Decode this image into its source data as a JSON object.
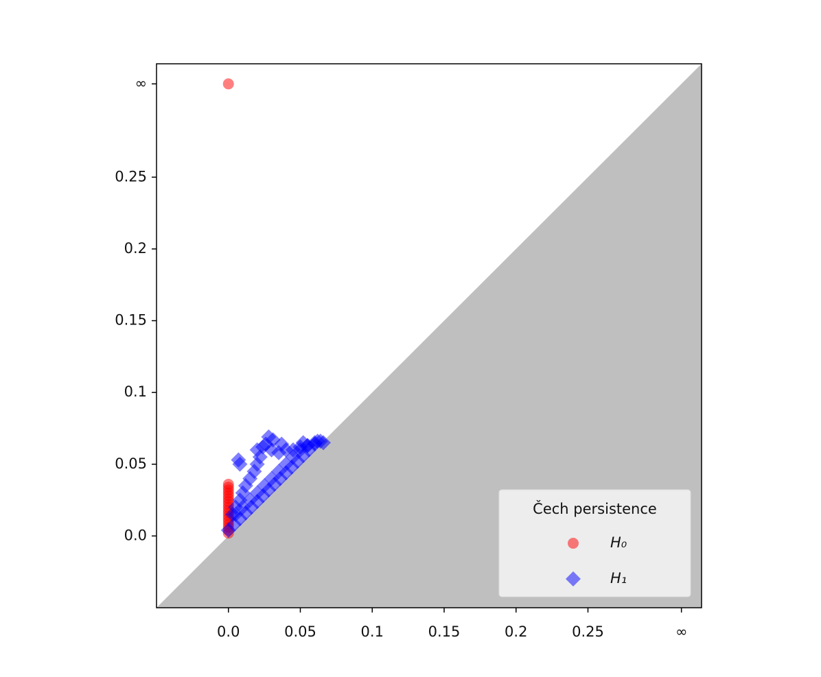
{
  "chart_data": {
    "type": "scatter",
    "xlim": [
      -0.05,
      0.329
    ],
    "ylim": [
      -0.05,
      0.329
    ],
    "xticks": [
      {
        "value": 0,
        "label": "0.0"
      },
      0.05,
      0.1,
      0.15,
      0.2,
      0.25,
      {
        "value": 0.315,
        "label": "∞"
      }
    ],
    "yticks": [
      {
        "value": 0,
        "label": "0.0"
      },
      0.05,
      0.1,
      0.15,
      0.2,
      0.25,
      {
        "value": 0.315,
        "label": "∞"
      }
    ],
    "diagonal_fill": "#bfbfbf",
    "legend_title": "Čech persistence",
    "legend_loc": "lower right",
    "series": [
      {
        "name": "H₀",
        "color": "#ff0000",
        "marker": "circle",
        "x": [
          0,
          0,
          0,
          0,
          0,
          0,
          0,
          0,
          0,
          0,
          0,
          0,
          0,
          0,
          0,
          0,
          0,
          0,
          0
        ],
        "values": [
          0.002,
          0.004,
          0.006,
          0.008,
          0.01,
          0.012,
          0.014,
          0.016,
          0.018,
          0.02,
          0.022,
          0.024,
          0.026,
          0.028,
          0.03,
          0.032,
          0.034,
          0.036,
          0.315
        ]
      },
      {
        "name": "H₁",
        "color": "#0000ff",
        "marker": "diamond",
        "x": [
          0,
          0.004,
          0.008,
          0.012,
          0.016,
          0.02,
          0.024,
          0.028,
          0.032,
          0.036,
          0.04,
          0.044,
          0.048,
          0.052,
          0.056,
          0.06,
          0.064,
          0.005,
          0.01,
          0.015,
          0.02,
          0.025,
          0.03,
          0.035,
          0.04,
          0.045,
          0.05,
          0.055,
          0.06,
          0.01,
          0.012,
          0.015,
          0.018,
          0.02,
          0.022,
          0.02,
          0.024,
          0.026,
          0.03,
          0.035,
          0.04,
          0.045,
          0.05,
          0.055,
          0.005,
          0.008,
          0.003,
          0.007,
          0.008,
          0.028,
          0.031,
          0.037,
          0.052,
          0.062,
          0.066
        ],
        "values": [
          0.004,
          0.008,
          0.012,
          0.016,
          0.02,
          0.024,
          0.028,
          0.032,
          0.036,
          0.04,
          0.044,
          0.048,
          0.052,
          0.056,
          0.06,
          0.064,
          0.066,
          0.015,
          0.02,
          0.025,
          0.03,
          0.035,
          0.04,
          0.045,
          0.05,
          0.055,
          0.06,
          0.063,
          0.065,
          0.03,
          0.035,
          0.04,
          0.045,
          0.05,
          0.055,
          0.06,
          0.062,
          0.064,
          0.06,
          0.058,
          0.06,
          0.06,
          0.062,
          0.063,
          0.02,
          0.025,
          0.015,
          0.053,
          0.05,
          0.069,
          0.067,
          0.064,
          0.065,
          0.066,
          0.065
        ]
      }
    ]
  }
}
